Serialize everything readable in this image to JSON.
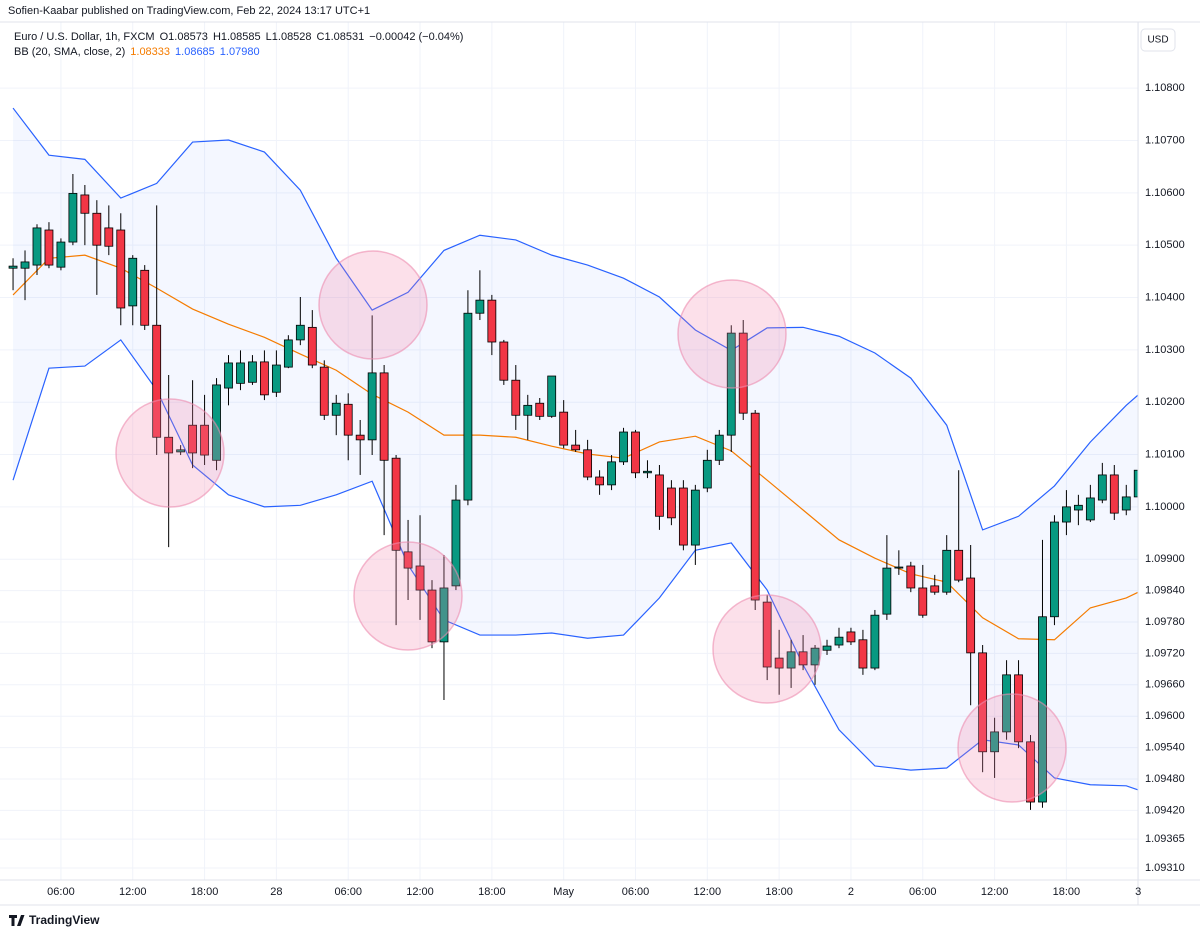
{
  "attribution": "Sofien-Kaabar published on TradingView.com, Feb 22, 2024 13:17 UTC+1",
  "header": {
    "symbol": "Euro / U.S. Dollar, 1h, FXCM",
    "ohlc": [
      "O1.08573",
      "H1.08585",
      "L1.08528",
      "C1.08531"
    ],
    "change": "−0.00042 (−0.04%)"
  },
  "indicator": {
    "name": "BB (20, SMA, close, 2)",
    "values": [
      "1.08333",
      "1.08685",
      "1.07980"
    ]
  },
  "currency": "USD",
  "footer": "TradingView",
  "chart_data": {
    "type": "candlestick",
    "up_color": "#089981",
    "down_color": "#f23645",
    "grid": true,
    "xlim": [
      -1.09,
      93.98
    ],
    "xticks": [
      {
        "value": 4,
        "label": "06:00"
      },
      {
        "value": 10,
        "label": "12:00"
      },
      {
        "value": 16,
        "label": "18:00"
      },
      {
        "value": 22,
        "label": "28"
      },
      {
        "value": 28,
        "label": "06:00"
      },
      {
        "value": 34,
        "label": "12:00"
      },
      {
        "value": 40,
        "label": "18:00"
      },
      {
        "value": 46,
        "label": "May"
      },
      {
        "value": 52,
        "label": "06:00"
      },
      {
        "value": 58,
        "label": "12:00"
      },
      {
        "value": 64,
        "label": "18:00"
      },
      {
        "value": 70,
        "label": "2"
      },
      {
        "value": 76,
        "label": "06:00"
      },
      {
        "value": 82,
        "label": "12:00"
      },
      {
        "value": 88,
        "label": "18:00"
      },
      {
        "value": 94,
        "label": "3"
      }
    ],
    "ylim": [
      1.10915,
      1.09287
    ],
    "yticks": [
      {
        "value": 1.108,
        "label": "1.10800"
      },
      {
        "value": 1.107,
        "label": "1.10700"
      },
      {
        "value": 1.106,
        "label": "1.10600"
      },
      {
        "value": 1.105,
        "label": "1.10500"
      },
      {
        "value": 1.104,
        "label": "1.10400"
      },
      {
        "value": 1.103,
        "label": "1.10300"
      },
      {
        "value": 1.102,
        "label": "1.10200"
      },
      {
        "value": 1.101,
        "label": "1.10100"
      },
      {
        "value": 1.1,
        "label": "1.10000"
      },
      {
        "value": 1.099,
        "label": "1.09900"
      },
      {
        "value": 1.0984,
        "label": "1.09840"
      },
      {
        "value": 1.0978,
        "label": "1.09780"
      },
      {
        "value": 1.0972,
        "label": "1.09720"
      },
      {
        "value": 1.0966,
        "label": "1.09660"
      },
      {
        "value": 1.096,
        "label": "1.09600"
      },
      {
        "value": 1.0954,
        "label": "1.09540"
      },
      {
        "value": 1.0948,
        "label": "1.09480"
      },
      {
        "value": 1.0942,
        "label": "1.09420"
      },
      1.09365,
      {
        "value": 1.0931,
        "label": "1.09310"
      }
    ],
    "candles": {
      "open": [
        1.10456,
        1.10456,
        1.10462,
        1.10529,
        1.10458,
        1.10506,
        1.10596,
        1.10561,
        1.10533,
        1.10529,
        1.10384,
        1.10452,
        1.10347,
        1.10133,
        1.10105,
        1.10156,
        1.10156,
        1.10089,
        1.10227,
        1.10236,
        1.10238,
        1.10277,
        1.10219,
        1.10267,
        1.10319,
        1.10343,
        1.10267,
        1.10175,
        1.10196,
        1.10137,
        1.10128,
        1.10256,
        1.10093,
        1.09914,
        1.09887,
        1.09841,
        1.09742,
        1.09849,
        1.10013,
        1.1037,
        1.10395,
        1.10315,
        1.10242,
        1.10175,
        1.10198,
        1.10173,
        1.10181,
        1.10118,
        1.10109,
        1.10057,
        1.10042,
        1.10086,
        1.10143,
        1.10065,
        1.10061,
        1.10036,
        1.10036,
        1.09927,
        1.10036,
        1.10089,
        1.10137,
        1.10332,
        1.10179,
        1.09818,
        1.09711,
        1.09692,
        1.09723,
        1.09698,
        1.09726,
        1.09736,
        1.09761,
        1.09746,
        1.09692,
        1.09795,
        1.09883,
        1.09887,
        1.09845,
        1.09849,
        1.09837,
        1.09917,
        1.09864,
        1.09721,
        1.09532,
        1.0957,
        1.09679,
        1.09551,
        1.09436,
        1.0979,
        1.09971,
        1.09994,
        1.09975,
        1.10013,
        1.10061,
        1.09994,
        1.10019
      ],
      "high": [
        1.10475,
        1.1049,
        1.1054,
        1.10544,
        1.10513,
        1.10636,
        1.10615,
        1.10586,
        1.10576,
        1.10561,
        1.10481,
        1.10462,
        1.10576,
        1.10252,
        1.10118,
        1.10242,
        1.10214,
        1.10246,
        1.1029,
        1.10299,
        1.1029,
        1.10299,
        1.10299,
        1.10328,
        1.10401,
        1.10376,
        1.1028,
        1.10214,
        1.10217,
        1.10166,
        1.10366,
        1.10271,
        1.10099,
        1.09975,
        1.09984,
        1.0986,
        1.09908,
        1.10042,
        1.10414,
        1.10452,
        1.10405,
        1.10319,
        1.10271,
        1.10214,
        1.10208,
        1.1025,
        1.10204,
        1.10147,
        1.10128,
        1.1007,
        1.10099,
        1.10151,
        1.10147,
        1.10089,
        1.1008,
        1.10051,
        1.10051,
        1.10042,
        1.10109,
        1.10147,
        1.10347,
        1.10357,
        1.10185,
        1.09832,
        1.09765,
        1.09746,
        1.09755,
        1.09736,
        1.09746,
        1.09769,
        1.09769,
        1.09765,
        1.09803,
        1.09946,
        1.09917,
        1.09895,
        1.09889,
        1.0987,
        1.09946,
        1.1007,
        1.09927,
        1.09736,
        1.09597,
        1.09707,
        1.09707,
        1.09564,
        1.09937,
        1.09984,
        1.10032,
        1.10023,
        1.10042,
        1.10084,
        1.1008,
        1.10042,
        1.1008
      ],
      "low": [
        1.10414,
        1.10395,
        1.10443,
        1.10456,
        1.10452,
        1.105,
        1.105,
        1.10405,
        1.10481,
        1.10347,
        1.10347,
        1.10338,
        1.10099,
        1.09923,
        1.10099,
        1.10074,
        1.1008,
        1.1007,
        1.10194,
        1.10223,
        1.10233,
        1.10204,
        1.1021,
        1.10265,
        1.10309,
        1.10265,
        1.10166,
        1.10137,
        1.10089,
        1.10061,
        1.10099,
        1.09946,
        1.09774,
        1.09822,
        1.09784,
        1.0973,
        1.09631,
        1.09841,
        1.10003,
        1.10357,
        1.1029,
        1.10233,
        1.10147,
        1.10128,
        1.10166,
        1.1017,
        1.10112,
        1.10105,
        1.10051,
        1.10023,
        1.10032,
        1.1008,
        1.10055,
        1.10055,
        1.09956,
        1.09965,
        1.09917,
        1.09889,
        1.10028,
        1.1008,
        1.10105,
        1.10166,
        1.09803,
        1.09669,
        1.09641,
        1.09654,
        1.09688,
        1.0966,
        1.09717,
        1.0973,
        1.09736,
        1.09679,
        1.09688,
        1.09784,
        1.0987,
        1.09837,
        1.09788,
        1.09832,
        1.09832,
        1.09856,
        1.09621,
        1.09493,
        1.09482,
        1.09555,
        1.09539,
        1.09421,
        1.09425,
        1.09774,
        1.09946,
        1.09965,
        1.09971,
        1.10007,
        1.09975,
        1.09984,
        1.10013
      ],
      "close": [
        1.1046,
        1.10468,
        1.10533,
        1.10462,
        1.10506,
        1.10599,
        1.10561,
        1.105,
        1.10498,
        1.1038,
        1.10475,
        1.10347,
        1.10133,
        1.10103,
        1.10109,
        1.10103,
        1.10099,
        1.10233,
        1.10275,
        1.10275,
        1.10277,
        1.10214,
        1.10271,
        1.10319,
        1.10347,
        1.10271,
        1.10175,
        1.10198,
        1.10137,
        1.10128,
        1.10256,
        1.10089,
        1.09917,
        1.09883,
        1.09841,
        1.09742,
        1.09845,
        1.10013,
        1.1037,
        1.10395,
        1.10315,
        1.10242,
        1.10175,
        1.10194,
        1.10173,
        1.1025,
        1.10118,
        1.10109,
        1.10057,
        1.10042,
        1.10086,
        1.10143,
        1.10065,
        1.10068,
        1.09982,
        1.09979,
        1.09927,
        1.10032,
        1.10089,
        1.10137,
        1.10332,
        1.10179,
        1.09822,
        1.09694,
        1.09692,
        1.09723,
        1.09698,
        1.0973,
        1.09734,
        1.09751,
        1.09742,
        1.09692,
        1.09793,
        1.09883,
        1.09885,
        1.09845,
        1.09793,
        1.09837,
        1.09917,
        1.0986,
        1.09721,
        1.09532,
        1.0957,
        1.09679,
        1.09551,
        1.09436,
        1.0979,
        1.09971,
        1.1,
        1.10003,
        1.10017,
        1.10061,
        1.09988,
        1.10019,
        1.1007
      ]
    },
    "bands": {
      "x": [
        0,
        3,
        6,
        9,
        12,
        15,
        18,
        21,
        24,
        27,
        30,
        33,
        36,
        39,
        42,
        45,
        48,
        51,
        54,
        57,
        60,
        63,
        66,
        69,
        72,
        75,
        78,
        81,
        84,
        87,
        90,
        93,
        94
      ],
      "upper": [
        1.10762,
        1.10672,
        1.10664,
        1.1059,
        1.10618,
        1.10697,
        1.10701,
        1.10678,
        1.10605,
        1.10475,
        1.10376,
        1.1041,
        1.1049,
        1.10519,
        1.1051,
        1.10481,
        1.10462,
        1.10437,
        1.10401,
        1.10338,
        1.10299,
        1.10342,
        1.10343,
        1.10326,
        1.10294,
        1.10246,
        1.10156,
        1.09956,
        1.09982,
        1.1004,
        1.10124,
        1.10194,
        1.10214
      ],
      "middle": [
        1.10405,
        1.10475,
        1.10481,
        1.10456,
        1.10418,
        1.10378,
        1.10349,
        1.10324,
        1.10292,
        1.10261,
        1.10215,
        1.10181,
        1.10137,
        1.10137,
        1.10133,
        1.10116,
        1.10101,
        1.10093,
        1.10124,
        1.10135,
        1.10107,
        1.10051,
        1.09994,
        1.09937,
        1.09902,
        1.09872,
        1.09856,
        1.09788,
        1.09748,
        1.09746,
        1.09807,
        1.09826,
        1.09837
      ],
      "lower": [
        1.10051,
        1.10265,
        1.10269,
        1.10319,
        1.10223,
        1.1008,
        1.10023,
        1.1,
        1.10003,
        1.10023,
        1.10049,
        1.09889,
        1.09784,
        1.09755,
        1.09755,
        1.09759,
        1.09749,
        1.09755,
        1.09826,
        1.09917,
        1.09931,
        1.09841,
        1.09698,
        1.09574,
        1.09505,
        1.09497,
        1.09501,
        1.09555,
        1.09545,
        1.09482,
        1.09469,
        1.09467,
        1.09459
      ],
      "band_color": "#2962ff",
      "middle_color": "#f57c00",
      "fill": "rgba(41,98,255,0.05)"
    }
  }
}
